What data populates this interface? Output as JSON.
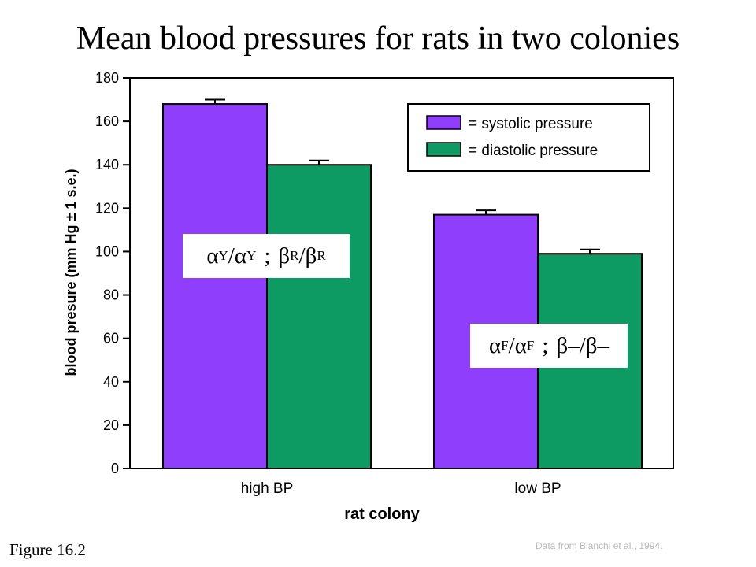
{
  "slide": {
    "title": "Mean blood pressures for rats in two colonies",
    "figure_label": "Figure 16.2",
    "source_note": "Data from Bianchi et al., 1994."
  },
  "colors": {
    "systolic": "#8f3ffc",
    "diastolic": "#0e9a63"
  },
  "genotypes": {
    "high": {
      "a": "α",
      "a_sup": "Y",
      "slash": "/",
      "a2": "α",
      "a2_sup": "Y",
      "sep": ";",
      "b": "β",
      "b_sup": "R",
      "b2": "β",
      "b2_sup": "R"
    },
    "low": {
      "a": "α",
      "a_sup": "F",
      "slash": "/",
      "a2": "α",
      "a2_sup": "F",
      "sep": ";",
      "b": "β–",
      "b2": "β–"
    }
  },
  "chart_data": {
    "type": "bar",
    "categories": [
      "high BP",
      "low BP"
    ],
    "series": [
      {
        "name": "= systolic pressure",
        "values": [
          168,
          117
        ],
        "errors": [
          2,
          2
        ],
        "color": "#8f3ffc"
      },
      {
        "name": "= diastolic pressure",
        "values": [
          140,
          99
        ],
        "errors": [
          2,
          2
        ],
        "color": "#0e9a63"
      }
    ],
    "xlabel": "rat colony",
    "ylabel": "blood presure (mm Hg ± 1 s.e.)",
    "ylim": [
      0,
      180
    ],
    "yticks": [
      0,
      20,
      40,
      60,
      80,
      100,
      120,
      140,
      160,
      180
    ],
    "legend_position": "top-right",
    "grid": false
  }
}
